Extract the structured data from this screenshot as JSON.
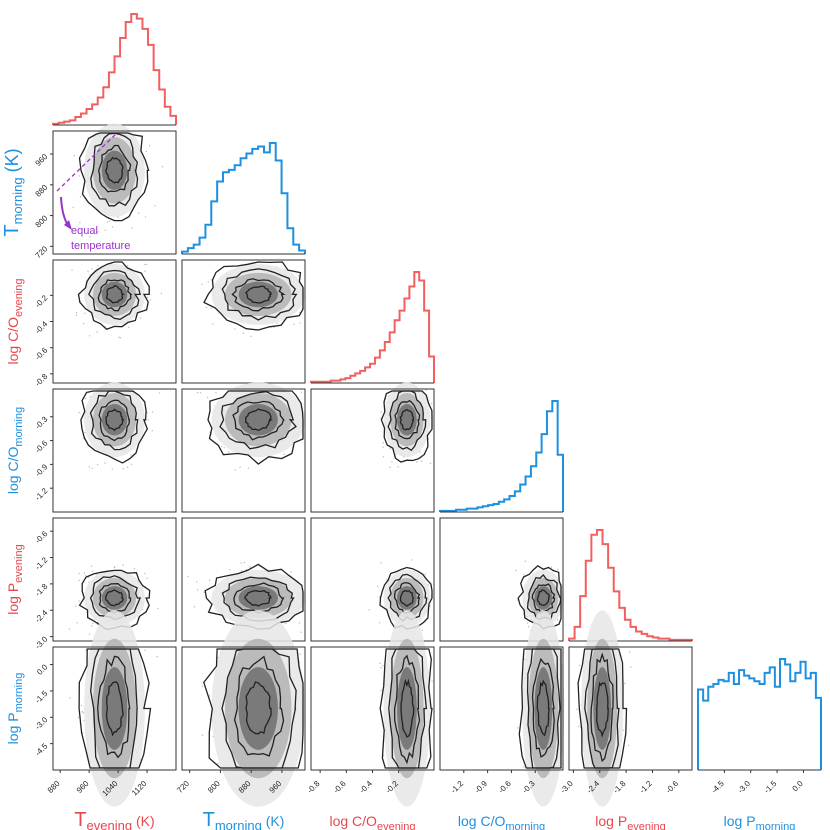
{
  "chart_data": {
    "type": "corner",
    "colors": {
      "evening": "#e8474c",
      "morning": "#1e90e0",
      "evening_hist": "#f06060",
      "contour": "#222222",
      "annotation": "#9932cc"
    },
    "parameters": [
      {
        "key": "t_evening",
        "label": {
          "main": "T",
          "sub": "evening",
          "suffix": " (K)"
        },
        "color": "evening",
        "range": [
          860,
          1200
        ],
        "ticks": [
          880,
          960,
          1040,
          1120
        ],
        "tick_labels": [
          "880",
          "960",
          "1040",
          "1120"
        ],
        "hist": [
          1,
          2,
          3,
          4,
          7,
          10,
          14,
          18,
          24,
          33,
          46,
          60,
          76,
          90,
          97,
          93,
          84,
          70,
          48,
          31,
          16,
          8
        ]
      },
      {
        "key": "t_morning",
        "label": {
          "main": "T",
          "sub": "morning",
          "suffix": " (K)"
        },
        "color": "morning",
        "range": [
          700,
          1020
        ],
        "ticks": [
          720,
          800,
          880,
          960
        ],
        "tick_labels": [
          "720",
          "800",
          "880",
          "960"
        ],
        "hist": [
          2,
          5,
          8,
          14,
          25,
          45,
          62,
          70,
          72,
          76,
          82,
          86,
          90,
          92,
          87,
          95,
          80,
          52,
          22,
          8,
          3
        ]
      },
      {
        "key": "co_evening",
        "label": {
          "main": "log C/O",
          "sub": "evening",
          "suffix": ""
        },
        "color": "evening",
        "range": [
          -0.87,
          0.07
        ],
        "ticks": [
          -0.8,
          -0.6,
          -0.4,
          -0.2
        ],
        "tick_labels": [
          "-0.8",
          "-0.6",
          "-0.4",
          "-0.2"
        ],
        "hist": [
          1,
          1,
          1,
          1,
          2,
          2,
          3,
          4,
          6,
          8,
          10,
          13,
          16,
          21,
          27,
          34,
          42,
          52,
          60,
          70,
          80,
          92,
          85,
          60,
          22
        ]
      },
      {
        "key": "co_morning",
        "label": {
          "main": "log C/O",
          "sub": "morning",
          "suffix": ""
        },
        "color": "morning",
        "range": [
          -1.5,
          0.05
        ],
        "ticks": [
          -1.2,
          -0.9,
          -0.6,
          -0.3
        ],
        "tick_labels": [
          "-1.2",
          "-0.9",
          "-0.6",
          "-0.3"
        ],
        "hist": [
          1,
          1,
          1,
          2,
          2,
          3,
          3,
          4,
          5,
          6,
          7,
          9,
          11,
          14,
          18,
          24,
          31,
          40,
          52,
          68,
          88,
          97,
          50
        ]
      },
      {
        "key": "p_evening",
        "label": {
          "main": "log P",
          "sub": "evening",
          "suffix": ""
        },
        "color": "evening",
        "range": [
          -3.1,
          -0.3
        ],
        "ticks": [
          -3.0,
          -2.4,
          -1.8,
          -1.2,
          -0.6
        ],
        "tick_labels": [
          "-3.0",
          "-2.4",
          "-1.8",
          "-1.2",
          "-0.6"
        ],
        "hist": [
          2,
          12,
          38,
          68,
          90,
          94,
          82,
          62,
          42,
          28,
          18,
          12,
          8,
          6,
          4,
          3,
          2,
          2,
          1,
          1,
          1,
          1
        ]
      },
      {
        "key": "p_morning",
        "label": {
          "main": "log P",
          "sub": "morning",
          "suffix": ""
        },
        "color": "morning",
        "range": [
          -6.0,
          1.0
        ],
        "ticks": [
          -4.5,
          -3.0,
          -1.5,
          0.0
        ],
        "tick_labels": [
          "-4.5",
          "-3.0",
          "-1.5",
          "0.0"
        ],
        "hist": [
          58,
          50,
          60,
          62,
          65,
          64,
          70,
          62,
          72,
          68,
          66,
          64,
          62,
          70,
          74,
          60,
          80,
          76,
          64,
          70,
          78,
          66,
          70,
          52
        ]
      }
    ],
    "annotation": {
      "text_lines": [
        "equal",
        "temperature"
      ]
    },
    "panel_row_tick_labels_hidden_for_first_row": true
  }
}
